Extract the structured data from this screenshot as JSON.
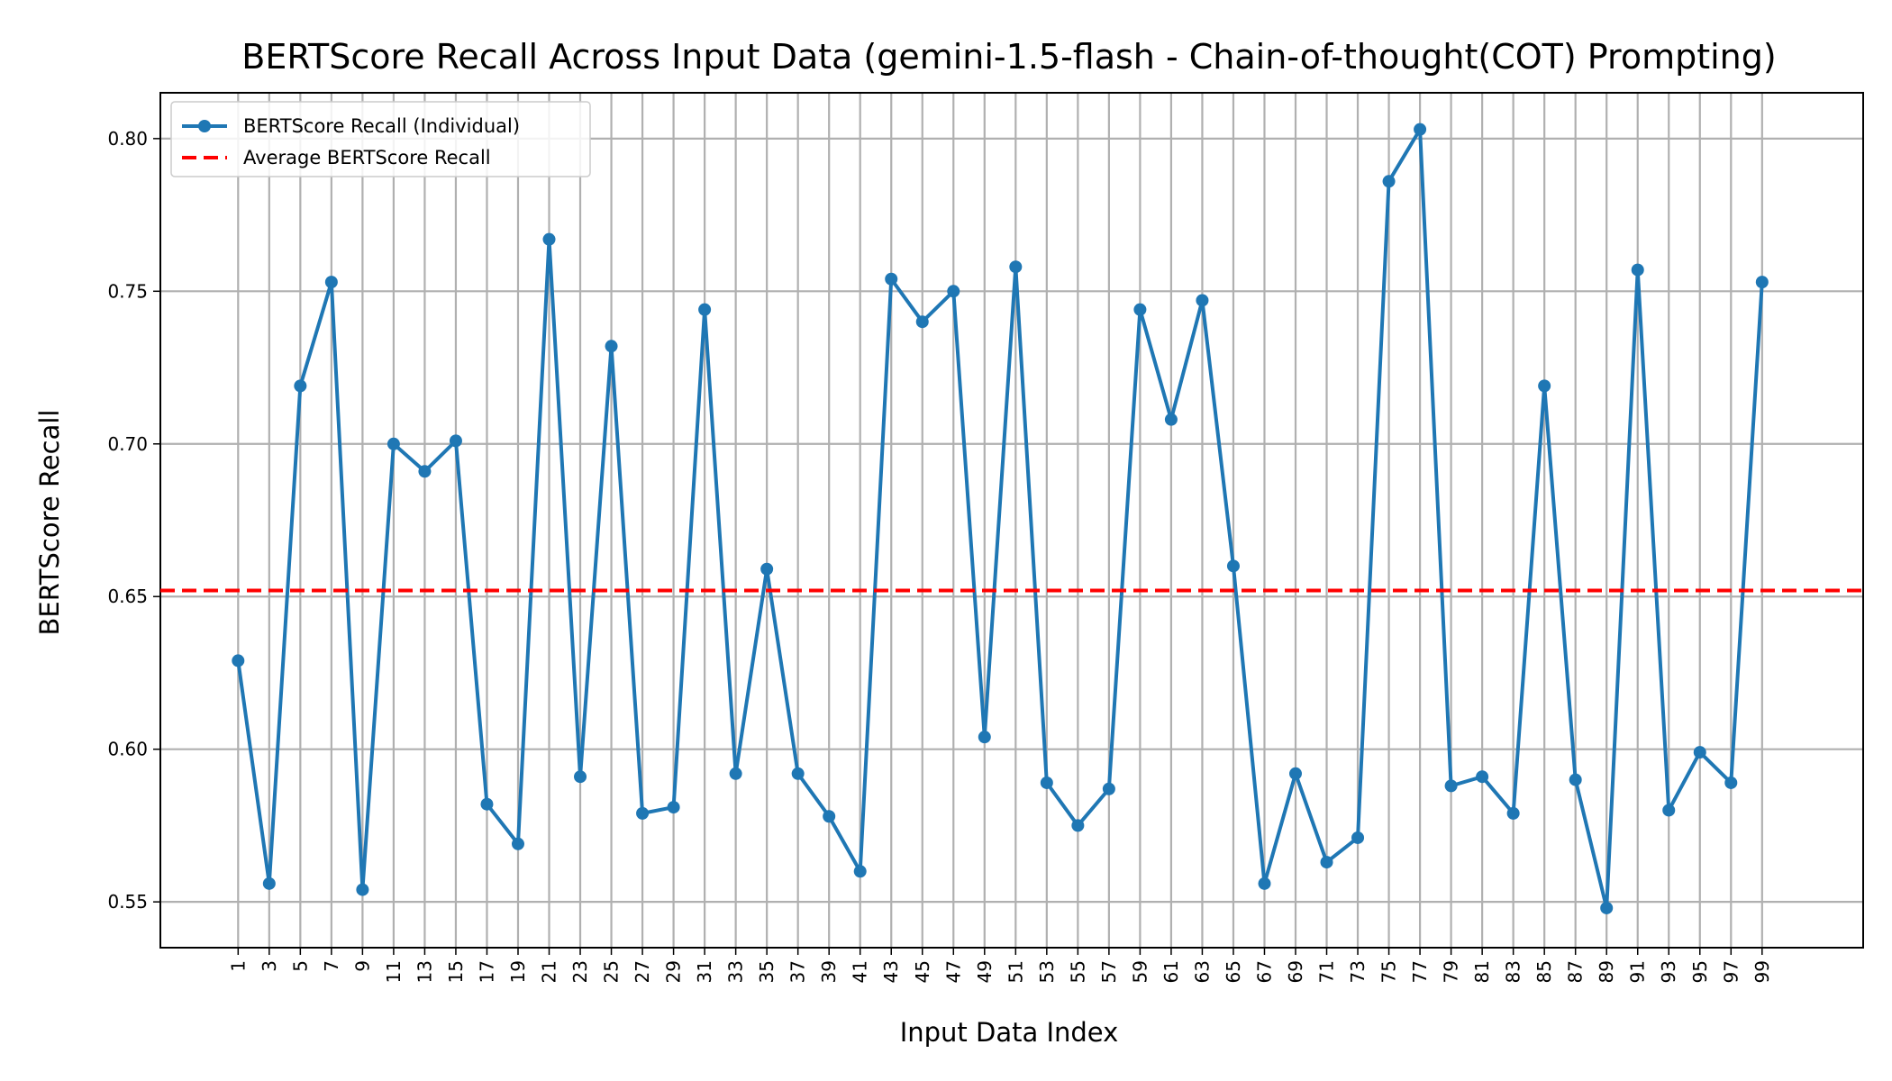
{
  "chart_data": {
    "type": "line",
    "title": "BERTScore Recall Across Input Data (gemini-1.5-flash - Chain-of-thought(COT) Prompting)",
    "xlabel": "Input Data Index",
    "ylabel": "BERTScore Recall",
    "ylim": [
      0.535,
      0.815
    ],
    "yticks": [
      "0.55",
      "0.60",
      "0.65",
      "0.70",
      "0.75",
      "0.80"
    ],
    "xticks": [
      "1",
      "3",
      "5",
      "7",
      "9",
      "11",
      "13",
      "15",
      "17",
      "19",
      "21",
      "23",
      "25",
      "27",
      "29",
      "31",
      "33",
      "35",
      "37",
      "39",
      "41",
      "43",
      "45",
      "47",
      "49",
      "51",
      "53",
      "55",
      "57",
      "59",
      "61",
      "63",
      "65",
      "67",
      "69",
      "71",
      "73",
      "75",
      "77",
      "79",
      "81",
      "83",
      "85",
      "87",
      "89",
      "91",
      "93",
      "95",
      "97",
      "99"
    ],
    "grid": true,
    "legend_position": "top-left",
    "series": [
      {
        "name": "BERTScore Recall (Individual)",
        "color": "#1f77b4",
        "x": [
          1,
          3,
          5,
          7,
          9,
          11,
          13,
          15,
          17,
          19,
          21,
          23,
          25,
          27,
          29,
          31,
          33,
          35,
          37,
          39,
          41,
          43,
          45,
          47,
          49,
          51,
          53,
          55,
          57,
          59,
          61,
          63,
          65,
          67,
          69,
          71,
          73,
          75,
          77,
          79,
          81,
          83,
          85,
          87,
          89,
          91,
          93,
          95,
          97,
          99
        ],
        "values": [
          0.629,
          0.556,
          0.719,
          0.753,
          0.554,
          0.7,
          0.691,
          0.701,
          0.582,
          0.569,
          0.767,
          0.591,
          0.732,
          0.579,
          0.581,
          0.744,
          0.592,
          0.659,
          0.592,
          0.578,
          0.56,
          0.754,
          0.74,
          0.75,
          0.604,
          0.758,
          0.589,
          0.575,
          0.587,
          0.744,
          0.708,
          0.747,
          0.66,
          0.556,
          0.592,
          0.563,
          0.571,
          0.786,
          0.803,
          0.588,
          0.591,
          0.579,
          0.719,
          0.59,
          0.548,
          0.757,
          0.58,
          0.599,
          0.589,
          0.753
        ]
      },
      {
        "name": "Average BERTScore Recall",
        "color": "#ff0000",
        "value": 0.652
      }
    ]
  }
}
